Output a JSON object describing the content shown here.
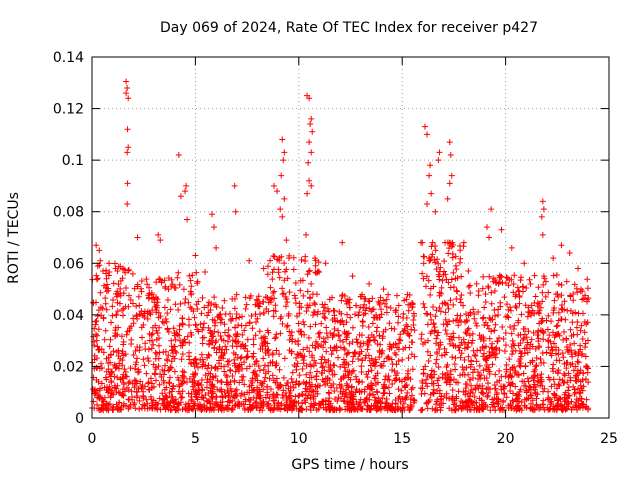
{
  "chart_data": {
    "type": "scatter",
    "title": "Day 069 of 2024, Rate Of TEC Index for receiver p427",
    "xlabel": "GPS time / hours",
    "ylabel": "ROTI / TECUs",
    "xlim": [
      0,
      25
    ],
    "ylim": [
      0,
      0.14
    ],
    "x_ticks": [
      0,
      5,
      10,
      15,
      20,
      25
    ],
    "y_ticks": [
      0,
      0.02,
      0.04,
      0.06,
      0.08,
      0.1,
      0.12,
      0.14
    ],
    "x_tick_labels": [
      "0",
      "5",
      "10",
      "15",
      "20",
      "25"
    ],
    "y_tick_labels": [
      "0",
      "0.02",
      "0.04",
      "0.06",
      "0.08",
      "0.1",
      "0.12",
      "0.14"
    ],
    "grid": true,
    "marker": "plus",
    "marker_color": "#ff0000",
    "series": [
      {
        "name": "ROTI",
        "points": [
          [
            1.65,
            0.1305
          ],
          [
            1.7,
            0.128
          ],
          [
            1.65,
            0.126
          ],
          [
            1.75,
            0.124
          ],
          [
            1.72,
            0.112
          ],
          [
            1.75,
            0.105
          ],
          [
            1.7,
            0.103
          ],
          [
            1.72,
            0.091
          ],
          [
            1.7,
            0.083
          ],
          [
            4.2,
            0.102
          ],
          [
            4.55,
            0.09
          ],
          [
            4.5,
            0.088
          ],
          [
            4.3,
            0.086
          ],
          [
            4.6,
            0.077
          ],
          [
            5.8,
            0.079
          ],
          [
            5.9,
            0.074
          ],
          [
            6.9,
            0.09
          ],
          [
            6.95,
            0.08
          ],
          [
            8.8,
            0.09
          ],
          [
            8.95,
            0.088
          ],
          [
            9.2,
            0.108
          ],
          [
            9.3,
            0.103
          ],
          [
            9.25,
            0.1
          ],
          [
            9.15,
            0.094
          ],
          [
            9.3,
            0.085
          ],
          [
            9.1,
            0.081
          ],
          [
            9.2,
            0.078
          ],
          [
            9.4,
            0.069
          ],
          [
            10.4,
            0.125
          ],
          [
            10.5,
            0.124
          ],
          [
            10.6,
            0.116
          ],
          [
            10.55,
            0.114
          ],
          [
            10.65,
            0.111
          ],
          [
            10.5,
            0.107
          ],
          [
            10.6,
            0.103
          ],
          [
            10.45,
            0.099
          ],
          [
            10.5,
            0.092
          ],
          [
            10.6,
            0.09
          ],
          [
            10.4,
            0.087
          ],
          [
            10.35,
            0.071
          ],
          [
            12.1,
            0.068
          ],
          [
            16.1,
            0.113
          ],
          [
            16.2,
            0.11
          ],
          [
            16.35,
            0.098
          ],
          [
            16.3,
            0.094
          ],
          [
            16.4,
            0.087
          ],
          [
            16.2,
            0.083
          ],
          [
            16.6,
            0.08
          ],
          [
            16.8,
            0.103
          ],
          [
            16.75,
            0.1
          ],
          [
            17.3,
            0.107
          ],
          [
            17.35,
            0.102
          ],
          [
            17.4,
            0.094
          ],
          [
            17.3,
            0.091
          ],
          [
            17.2,
            0.085
          ],
          [
            19.3,
            0.081
          ],
          [
            19.1,
            0.074
          ],
          [
            19.2,
            0.07
          ],
          [
            19.8,
            0.073
          ],
          [
            21.8,
            0.084
          ],
          [
            21.85,
            0.081
          ],
          [
            21.75,
            0.078
          ],
          [
            21.8,
            0.071
          ],
          [
            22.7,
            0.067
          ],
          [
            23.1,
            0.064
          ],
          [
            0.2,
            0.067
          ],
          [
            0.35,
            0.065
          ],
          [
            0.4,
            0.061
          ],
          [
            2.2,
            0.07
          ],
          [
            3.2,
            0.071
          ],
          [
            3.3,
            0.069
          ],
          [
            5.0,
            0.063
          ],
          [
            6.0,
            0.066
          ],
          [
            7.6,
            0.061
          ],
          [
            8.3,
            0.058
          ],
          [
            11.3,
            0.06
          ],
          [
            12.6,
            0.055
          ],
          [
            13.4,
            0.052
          ],
          [
            14.1,
            0.05
          ],
          [
            15.2,
            0.046
          ],
          [
            18.2,
            0.057
          ],
          [
            18.6,
            0.052
          ],
          [
            20.3,
            0.066
          ],
          [
            20.9,
            0.06
          ],
          [
            22.3,
            0.062
          ],
          [
            23.5,
            0.058
          ]
        ]
      }
    ],
    "background_noise_description": "dense cloud of ROTI samples between 0.002 and ~0.06 across 0-24 h"
  }
}
